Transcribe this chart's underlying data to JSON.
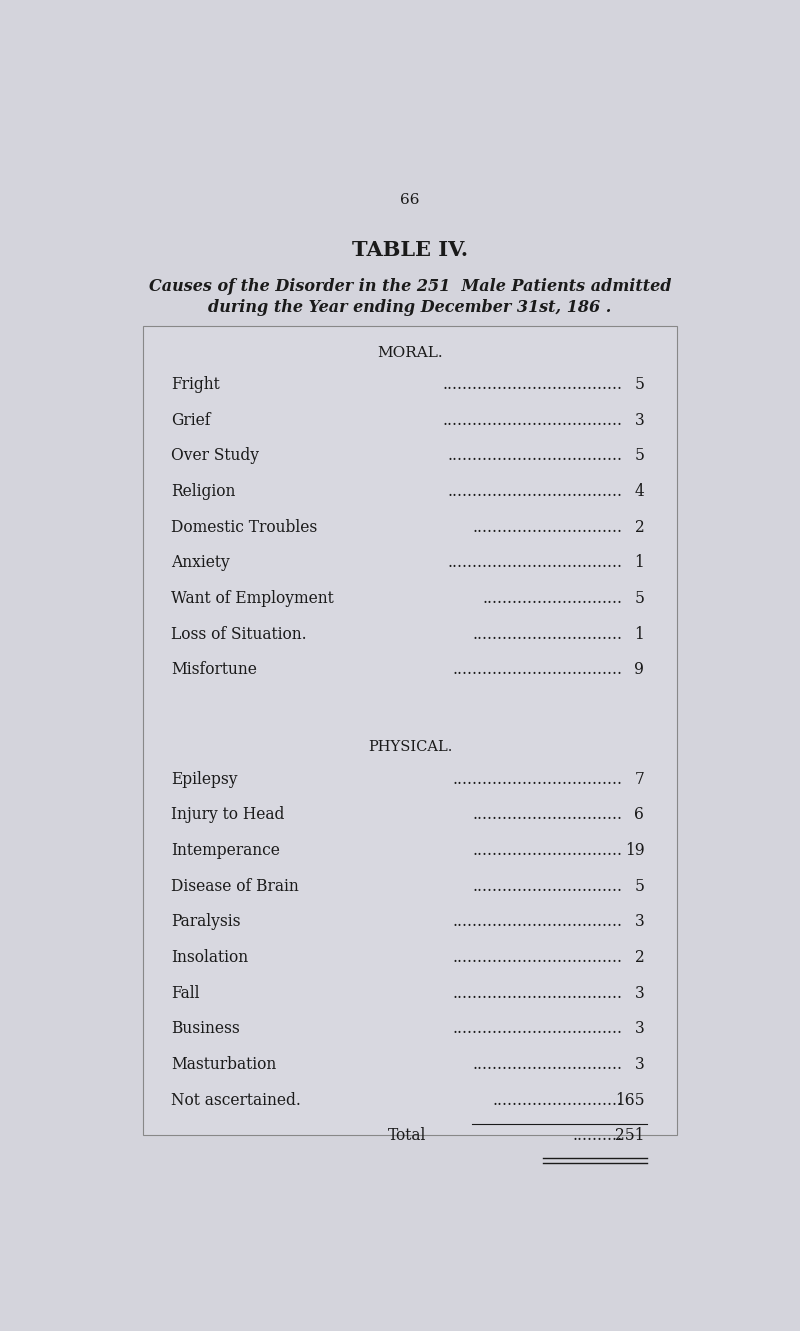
{
  "page_number": "66",
  "title": "TABLE IV.",
  "subtitle_line1": "Causes of the Disorder in the 251  Male Patients admitted",
  "subtitle_line2": "during the Year ending December 31st, 186 .",
  "background_color": "#d4d4dc",
  "box_color": "#d8d8e0",
  "text_color": "#1a1a1a",
  "section_moral": "MORAL.",
  "section_physical": "PHYSICAL.",
  "moral_rows": [
    [
      "Fright",
      "5"
    ],
    [
      "Grief",
      "3"
    ],
    [
      "Over Study",
      "5"
    ],
    [
      "Religion",
      "4"
    ],
    [
      "Domestic Troubles",
      "2"
    ],
    [
      "Anxiety",
      "1"
    ],
    [
      "Want of Employment",
      "5"
    ],
    [
      "Loss of Situation.",
      "1"
    ],
    [
      "Misfortune",
      "9"
    ]
  ],
  "physical_rows": [
    [
      "Epilepsy",
      "7"
    ],
    [
      "Injury to Head",
      "6"
    ],
    [
      "Intemperance",
      "19"
    ],
    [
      "Disease of Brain",
      "5"
    ],
    [
      "Paralysis",
      "3"
    ],
    [
      "Insolation",
      "2"
    ],
    [
      "Fall",
      "3"
    ],
    [
      "Business",
      "3"
    ],
    [
      "Masturbation",
      "3"
    ],
    [
      "Not ascertained.",
      "165"
    ]
  ],
  "total_label": "Total",
  "total_value": "251",
  "fig_width": 8.0,
  "fig_height": 13.31
}
